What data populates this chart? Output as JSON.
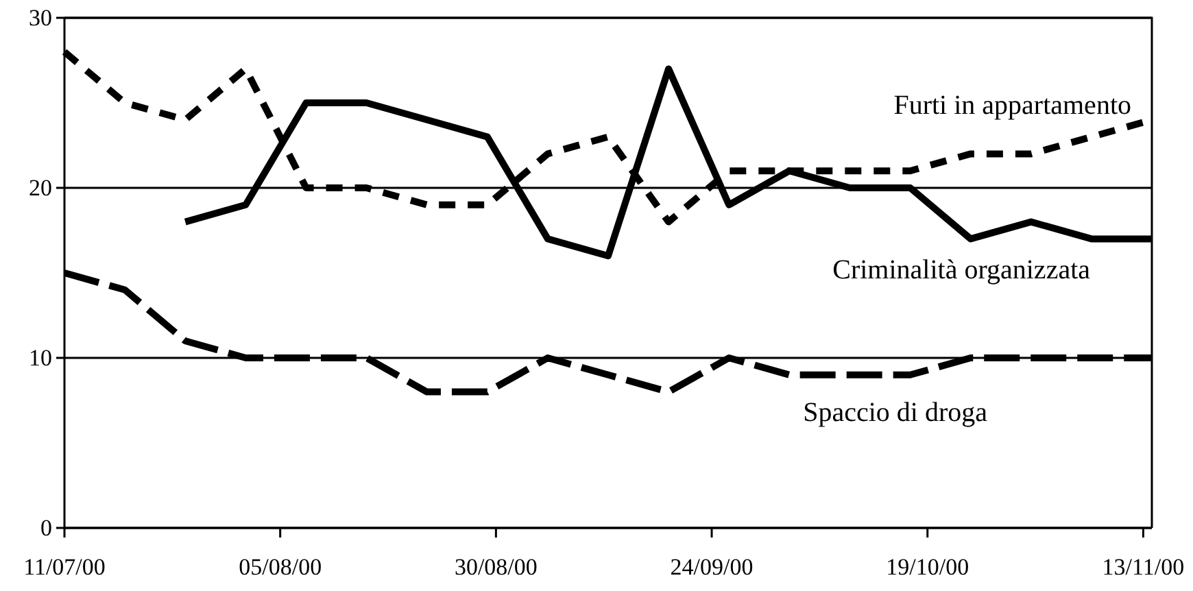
{
  "chart_data": {
    "type": "line",
    "x": [
      "2000-07-11",
      "2000-07-18",
      "2000-07-25",
      "2000-08-01",
      "2000-08-08",
      "2000-08-15",
      "2000-08-22",
      "2000-08-29",
      "2000-09-05",
      "2000-09-12",
      "2000-09-19",
      "2000-09-26",
      "2000-10-03",
      "2000-10-10",
      "2000-10-17",
      "2000-10-24",
      "2000-10-31",
      "2000-11-07",
      "2000-11-14"
    ],
    "series": [
      {
        "name": "Furti in appartamento",
        "color": "#000000",
        "line_style": "dotted",
        "values": [
          28,
          25,
          24,
          27,
          20,
          20,
          19,
          19,
          22,
          23,
          18,
          21,
          21,
          21,
          21,
          22,
          22,
          23,
          24
        ]
      },
      {
        "name": "Criminalità organizzata",
        "color": "#000000",
        "line_style": "solid",
        "values": [
          null,
          null,
          18,
          19,
          25,
          25,
          24,
          23,
          17,
          16,
          27,
          19,
          21,
          20,
          20,
          17,
          18,
          17,
          17
        ]
      },
      {
        "name": "Spaccio di droga",
        "color": "#000000",
        "line_style": "dashed",
        "values": [
          15,
          14,
          11,
          10,
          10,
          10,
          8,
          8,
          10,
          9,
          8,
          10,
          9,
          9,
          9,
          10,
          10,
          10,
          10
        ]
      }
    ],
    "xlim": [
      "2000-07-11",
      "2000-11-14"
    ],
    "xticks": [
      {
        "value": "2000-07-11",
        "label": "11/07/00"
      },
      {
        "value": "2000-08-05",
        "label": "05/08/00"
      },
      {
        "value": "2000-08-30",
        "label": "30/08/00"
      },
      {
        "value": "2000-09-24",
        "label": "24/09/00"
      },
      {
        "value": "2000-10-19",
        "label": "19/10/00"
      },
      {
        "value": "2000-11-13",
        "label": "13/11/00"
      }
    ],
    "ylim": [
      0,
      30
    ],
    "yticks": [
      0,
      10,
      20,
      30
    ],
    "grid": "y",
    "legend": false,
    "marker": "none"
  }
}
